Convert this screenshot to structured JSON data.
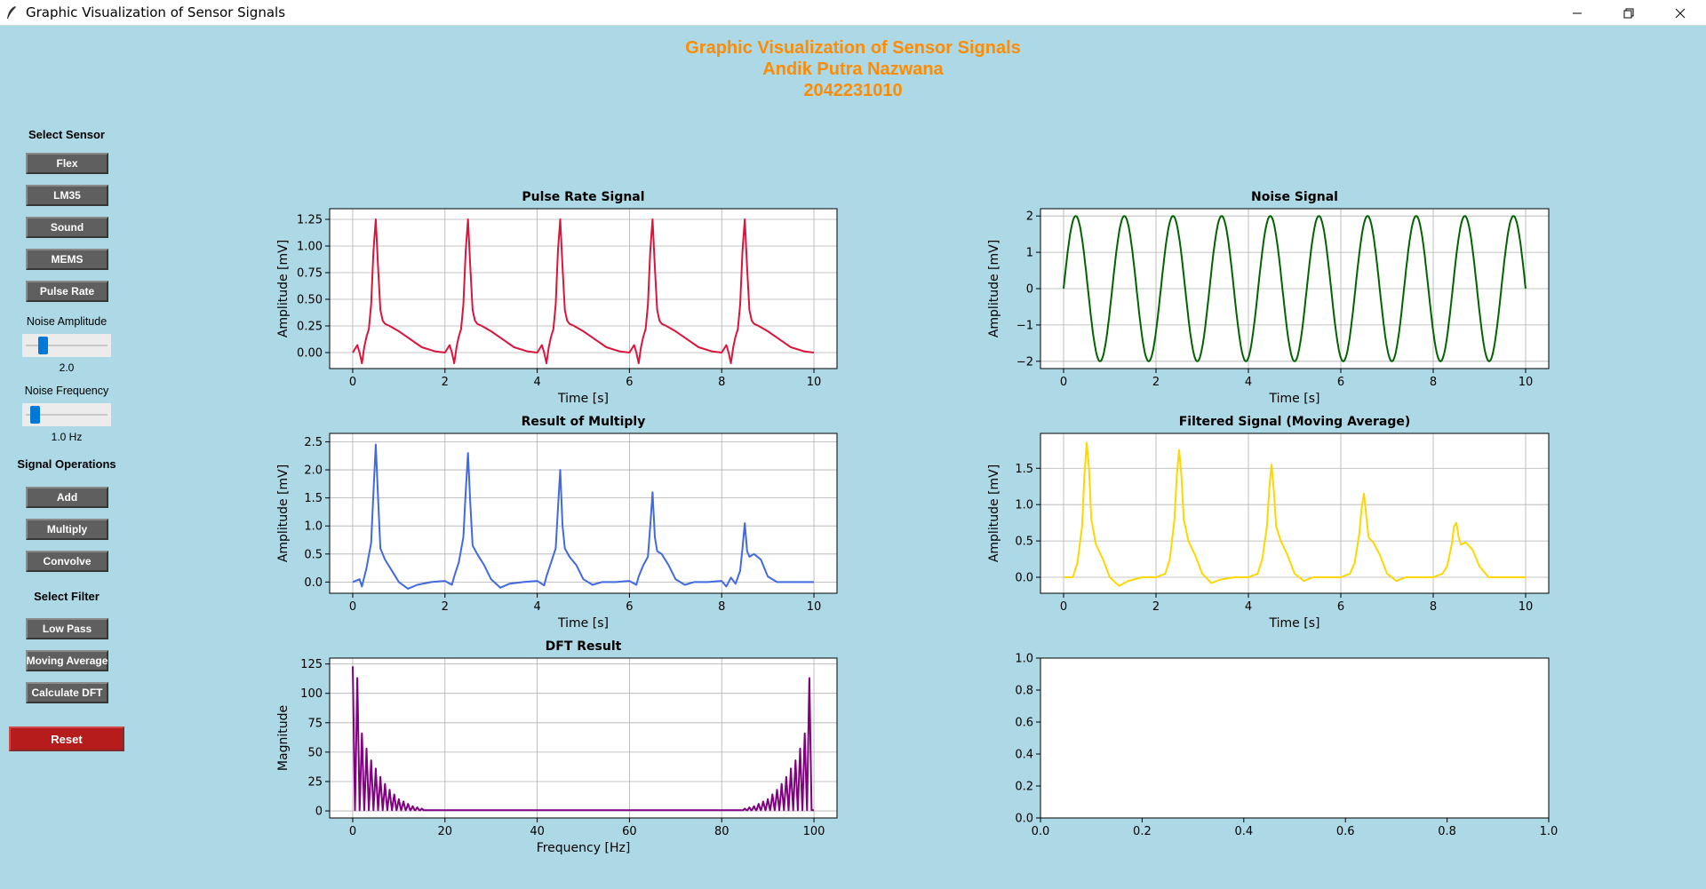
{
  "window": {
    "title": "Graphic Visualization of Sensor Signals"
  },
  "header": {
    "line1": "Graphic Visualization of Sensor Signals",
    "line2": "Andik Putra Nazwana",
    "line3": "2042231010"
  },
  "sidebar": {
    "select_sensor": "Select Sensor",
    "sensors": [
      "Flex",
      "LM35",
      "Sound",
      "MEMS",
      "Pulse Rate"
    ],
    "noise_amplitude_label": "Noise Amplitude",
    "noise_amplitude_value": "2.0",
    "noise_amplitude_level": 0.2,
    "noise_frequency_label": "Noise Frequency",
    "noise_frequency_value": "1.0 Hz",
    "noise_frequency_level": 0.1,
    "signal_operations": "Signal Operations",
    "operations": [
      "Add",
      "Multiply",
      "Convolve"
    ],
    "select_filter": "Select Filter",
    "filters": [
      "Low Pass",
      "Moving Average",
      "Calculate DFT"
    ],
    "reset": "Reset"
  },
  "colors": {
    "background": "#add8e6",
    "title": "#ff8c00",
    "button": "#5f5f5f",
    "reset": "#b71c1c",
    "pulse": "#dc143c",
    "noise": "#006400",
    "multiply": "#4169e1",
    "filtered": "#ffd700",
    "dft": "#800080"
  },
  "chart_data": [
    {
      "id": "pulse",
      "type": "line",
      "title": "Pulse Rate Signal",
      "xlabel": "Time [s]",
      "ylabel": "Amplitude [mV]",
      "xlim": [
        -0.5,
        10.5
      ],
      "ylim": [
        -0.15,
        1.35
      ],
      "xticks": [
        "0",
        "2",
        "4",
        "6",
        "8",
        "10"
      ],
      "yticks": [
        "0.00",
        "0.25",
        "0.50",
        "0.75",
        "1.00",
        "1.25"
      ],
      "grid": true,
      "series": [
        {
          "color": "#dc143c",
          "x": [
            0,
            0.1,
            0.15,
            0.2,
            0.25,
            0.3,
            0.35,
            0.4,
            0.45,
            0.5,
            0.55,
            0.6,
            0.65,
            0.7,
            0.8,
            1.0,
            1.2,
            1.5,
            1.8,
            2.0,
            2.1,
            2.15,
            2.2,
            2.25,
            2.3,
            2.35,
            2.4,
            2.45,
            2.5,
            2.55,
            2.6,
            2.65,
            2.7,
            2.8,
            3.0,
            3.2,
            3.5,
            3.8,
            4.0,
            4.1,
            4.15,
            4.2,
            4.25,
            4.3,
            4.35,
            4.4,
            4.45,
            4.5,
            4.55,
            4.6,
            4.65,
            4.7,
            4.8,
            5.0,
            5.2,
            5.5,
            5.8,
            6.0,
            6.1,
            6.15,
            6.2,
            6.25,
            6.3,
            6.35,
            6.4,
            6.45,
            6.5,
            6.55,
            6.6,
            6.65,
            6.7,
            6.8,
            7.0,
            7.2,
            7.5,
            7.8,
            8.0,
            8.1,
            8.15,
            8.2,
            8.25,
            8.3,
            8.35,
            8.4,
            8.45,
            8.5,
            8.55,
            8.6,
            8.65,
            8.7,
            8.8,
            9.0,
            9.2,
            9.5,
            9.8,
            10.0
          ],
          "y": [
            0.0,
            0.07,
            0.0,
            -0.1,
            0.05,
            0.15,
            0.22,
            0.45,
            0.95,
            1.25,
            0.8,
            0.4,
            0.3,
            0.27,
            0.25,
            0.2,
            0.14,
            0.05,
            0.01,
            0.0,
            0.07,
            0.0,
            -0.1,
            0.05,
            0.15,
            0.22,
            0.45,
            0.95,
            1.25,
            0.8,
            0.4,
            0.3,
            0.27,
            0.25,
            0.2,
            0.14,
            0.05,
            0.01,
            0.0,
            0.07,
            0.0,
            -0.1,
            0.05,
            0.15,
            0.22,
            0.45,
            0.95,
            1.25,
            0.8,
            0.4,
            0.3,
            0.27,
            0.25,
            0.2,
            0.14,
            0.05,
            0.01,
            0.0,
            0.07,
            0.0,
            -0.1,
            0.05,
            0.15,
            0.22,
            0.45,
            0.95,
            1.25,
            0.8,
            0.4,
            0.3,
            0.27,
            0.25,
            0.2,
            0.14,
            0.05,
            0.01,
            0.0,
            0.07,
            0.0,
            -0.1,
            0.05,
            0.15,
            0.22,
            0.45,
            0.95,
            1.25,
            0.8,
            0.4,
            0.3,
            0.27,
            0.25,
            0.2,
            0.14,
            0.05,
            0.01,
            0.0
          ]
        }
      ]
    },
    {
      "id": "noise",
      "type": "line",
      "title": "Noise Signal",
      "xlabel": "Time [s]",
      "ylabel": "Amplitude [mV]",
      "xlim": [
        -0.5,
        10.5
      ],
      "ylim": [
        -2.2,
        2.2
      ],
      "xticks": [
        "0",
        "2",
        "4",
        "6",
        "8",
        "10"
      ],
      "yticks": [
        "−2",
        "−1",
        "0",
        "1",
        "2"
      ],
      "grid": true,
      "series": [
        {
          "color": "#006400",
          "amplitude": 2.0,
          "frequency": 0.95,
          "x_range": [
            0,
            10
          ]
        }
      ]
    },
    {
      "id": "multiply",
      "type": "line",
      "title": "Result of Multiply",
      "xlabel": "Time [s]",
      "ylabel": "Amplitude [mV]",
      "xlim": [
        -0.5,
        10.5
      ],
      "ylim": [
        -0.2,
        2.65
      ],
      "xticks": [
        "0",
        "2",
        "4",
        "6",
        "8",
        "10"
      ],
      "yticks": [
        "0.0",
        "0.5",
        "1.0",
        "1.5",
        "2.0",
        "2.5"
      ],
      "grid": true,
      "series": [
        {
          "color": "#4169e1",
          "x": [
            0,
            0.15,
            0.2,
            0.3,
            0.4,
            0.45,
            0.5,
            0.55,
            0.6,
            0.7,
            0.85,
            1.0,
            1.2,
            1.4,
            1.7,
            2.0,
            2.15,
            2.2,
            2.3,
            2.4,
            2.45,
            2.5,
            2.55,
            2.6,
            2.7,
            2.85,
            3.0,
            3.2,
            3.4,
            3.7,
            4.0,
            4.15,
            4.2,
            4.3,
            4.4,
            4.45,
            4.5,
            4.55,
            4.6,
            4.7,
            4.85,
            5.0,
            5.2,
            5.4,
            5.7,
            6.0,
            6.15,
            6.2,
            6.3,
            6.4,
            6.45,
            6.5,
            6.55,
            6.6,
            6.7,
            6.85,
            7.0,
            7.2,
            7.4,
            7.7,
            8.0,
            8.1,
            8.2,
            8.3,
            8.4,
            8.45,
            8.5,
            8.55,
            8.6,
            8.7,
            8.85,
            9.0,
            9.2,
            9.4,
            9.7,
            10.0
          ],
          "y": [
            0.0,
            0.05,
            -0.08,
            0.25,
            0.7,
            1.6,
            2.45,
            1.5,
            0.6,
            0.4,
            0.2,
            0.0,
            -0.12,
            -0.05,
            0.0,
            0.02,
            -0.05,
            0.1,
            0.35,
            0.8,
            1.6,
            2.3,
            1.4,
            0.65,
            0.5,
            0.3,
            0.05,
            -0.1,
            -0.03,
            0.0,
            0.02,
            -0.06,
            0.1,
            0.35,
            0.6,
            1.3,
            2.0,
            1.0,
            0.6,
            0.45,
            0.3,
            0.05,
            -0.05,
            0.0,
            0.0,
            0.02,
            -0.05,
            0.1,
            0.3,
            0.45,
            1.0,
            1.6,
            0.8,
            0.55,
            0.5,
            0.3,
            0.05,
            -0.05,
            0.0,
            0.0,
            0.02,
            -0.08,
            0.08,
            -0.03,
            0.2,
            0.6,
            1.05,
            0.55,
            0.45,
            0.5,
            0.4,
            0.1,
            0.0,
            0.0,
            0.0,
            0.0
          ]
        }
      ]
    },
    {
      "id": "filtered",
      "type": "line",
      "title": "Filtered Signal (Moving Average)",
      "xlabel": "Time [s]",
      "ylabel": "Amplitude [mV]",
      "xlim": [
        -0.5,
        10.5
      ],
      "ylim": [
        -0.22,
        1.98
      ],
      "xticks": [
        "0",
        "2",
        "4",
        "6",
        "8",
        "10"
      ],
      "yticks": [
        "0.0",
        "0.5",
        "1.0",
        "1.5"
      ],
      "grid": true,
      "series": [
        {
          "color": "#ffd700",
          "x": [
            0,
            0.2,
            0.3,
            0.4,
            0.45,
            0.5,
            0.55,
            0.6,
            0.7,
            0.85,
            1.0,
            1.2,
            1.4,
            1.7,
            2.0,
            2.2,
            2.3,
            2.4,
            2.45,
            2.5,
            2.55,
            2.6,
            2.7,
            2.85,
            3.0,
            3.2,
            3.4,
            3.7,
            4.0,
            4.2,
            4.3,
            4.4,
            4.45,
            4.5,
            4.55,
            4.6,
            4.7,
            4.85,
            5.0,
            5.2,
            5.4,
            5.7,
            6.0,
            6.2,
            6.3,
            6.4,
            6.45,
            6.5,
            6.55,
            6.6,
            6.7,
            6.85,
            7.0,
            7.2,
            7.4,
            7.7,
            8.0,
            8.2,
            8.3,
            8.4,
            8.45,
            8.5,
            8.55,
            8.6,
            8.7,
            8.85,
            9.0,
            9.2,
            9.4,
            9.7,
            10.0
          ],
          "y": [
            0.0,
            0.0,
            0.2,
            0.7,
            1.4,
            1.85,
            1.5,
            0.8,
            0.45,
            0.25,
            0.0,
            -0.12,
            -0.05,
            0.0,
            0.0,
            0.05,
            0.25,
            0.8,
            1.4,
            1.75,
            1.4,
            0.8,
            0.5,
            0.3,
            0.05,
            -0.08,
            -0.03,
            0.0,
            0.0,
            0.05,
            0.25,
            0.7,
            1.2,
            1.55,
            1.2,
            0.7,
            0.5,
            0.3,
            0.05,
            -0.05,
            0.0,
            0.0,
            0.0,
            0.05,
            0.2,
            0.6,
            0.95,
            1.15,
            0.85,
            0.55,
            0.48,
            0.3,
            0.05,
            -0.05,
            0.0,
            0.0,
            0.0,
            0.05,
            0.15,
            0.45,
            0.7,
            0.75,
            0.55,
            0.45,
            0.48,
            0.38,
            0.15,
            0.0,
            0.0,
            0.0,
            0.0
          ]
        }
      ]
    },
    {
      "id": "dft",
      "type": "line",
      "title": "DFT Result",
      "xlabel": "Frequency [Hz]",
      "ylabel": "Magnitude",
      "xlim": [
        -5,
        105
      ],
      "ylim": [
        -6,
        130
      ],
      "xticks": [
        "0",
        "20",
        "40",
        "60",
        "80",
        "100"
      ],
      "yticks": [
        "0",
        "25",
        "50",
        "75",
        "100",
        "125"
      ],
      "grid": true,
      "series": [
        {
          "color": "#800080",
          "peaks": [
            [
              0.0,
              123
            ],
            [
              1.0,
              113
            ],
            [
              2.0,
              66
            ],
            [
              3.0,
              53
            ],
            [
              4.0,
              43
            ],
            [
              5.0,
              36
            ],
            [
              6.0,
              29
            ],
            [
              7.0,
              23
            ],
            [
              8.0,
              18
            ],
            [
              9.0,
              14
            ],
            [
              10.0,
              10
            ],
            [
              11.0,
              8
            ],
            [
              12.0,
              6
            ],
            [
              13.0,
              4
            ],
            [
              14.0,
              3
            ],
            [
              15.0,
              2
            ],
            [
              85.0,
              2
            ],
            [
              86.0,
              3
            ],
            [
              87.0,
              4
            ],
            [
              88.0,
              6
            ],
            [
              89.0,
              8
            ],
            [
              90.0,
              10
            ],
            [
              91.0,
              14
            ],
            [
              92.0,
              18
            ],
            [
              93.0,
              23
            ],
            [
              94.0,
              29
            ],
            [
              95.0,
              36
            ],
            [
              96.0,
              43
            ],
            [
              97.0,
              53
            ],
            [
              98.0,
              66
            ],
            [
              99.0,
              113
            ]
          ]
        }
      ]
    },
    {
      "id": "empty",
      "type": "line",
      "title": "",
      "xlabel": "",
      "ylabel": "",
      "xlim": [
        0,
        1
      ],
      "ylim": [
        0,
        1
      ],
      "xticks": [
        "0.0",
        "0.2",
        "0.4",
        "0.6",
        "0.8",
        "1.0"
      ],
      "yticks": [
        "0.0",
        "0.2",
        "0.4",
        "0.6",
        "0.8",
        "1.0"
      ],
      "grid": false,
      "series": []
    }
  ]
}
